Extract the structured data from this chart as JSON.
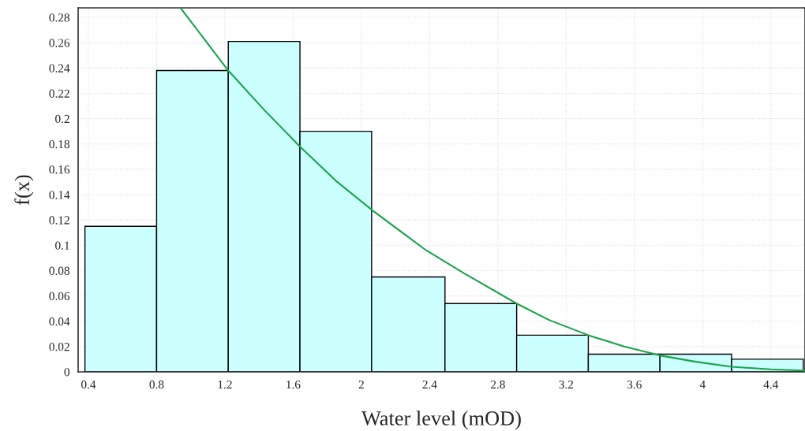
{
  "chart_data": {
    "type": "histogram",
    "xlabel": "Water level (mOD)",
    "ylabel": "f(x)",
    "bins": [
      0.38,
      0.8,
      1.22,
      1.64,
      2.06,
      2.49,
      2.91,
      3.33,
      3.75,
      4.17,
      4.59
    ],
    "values": [
      0.115,
      0.238,
      0.261,
      0.19,
      0.075,
      0.054,
      0.029,
      0.014,
      0.014,
      0.01
    ],
    "color": "#ccffff",
    "series": [
      {
        "type": "line",
        "color": "#1aa34a",
        "x": [
          0.94,
          1.22,
          1.43,
          1.64,
          1.85,
          2.07,
          2.38,
          2.6,
          2.91,
          3.1,
          3.33,
          3.54,
          3.75,
          3.96,
          4.17,
          4.4,
          4.6
        ],
        "values": [
          0.2875,
          0.238,
          0.207,
          0.178,
          0.151,
          0.127,
          0.096,
          0.078,
          0.054,
          0.041,
          0.029,
          0.02,
          0.013,
          0.008,
          0.004,
          0.002,
          0.001
        ]
      }
    ],
    "xlim": [
      0.34,
      4.6
    ],
    "ylim": [
      0,
      0.2875
    ],
    "xticks": [
      0.4,
      0.8,
      1.2,
      1.6,
      2,
      2.4,
      2.8,
      3.2,
      3.6,
      4,
      4.4
    ],
    "yticks": [
      0,
      0.02,
      0.04,
      0.06,
      0.08,
      0.1,
      0.12,
      0.14,
      0.16,
      0.18,
      0.2,
      0.22,
      0.24,
      0.26,
      0.28
    ],
    "grid": true
  }
}
